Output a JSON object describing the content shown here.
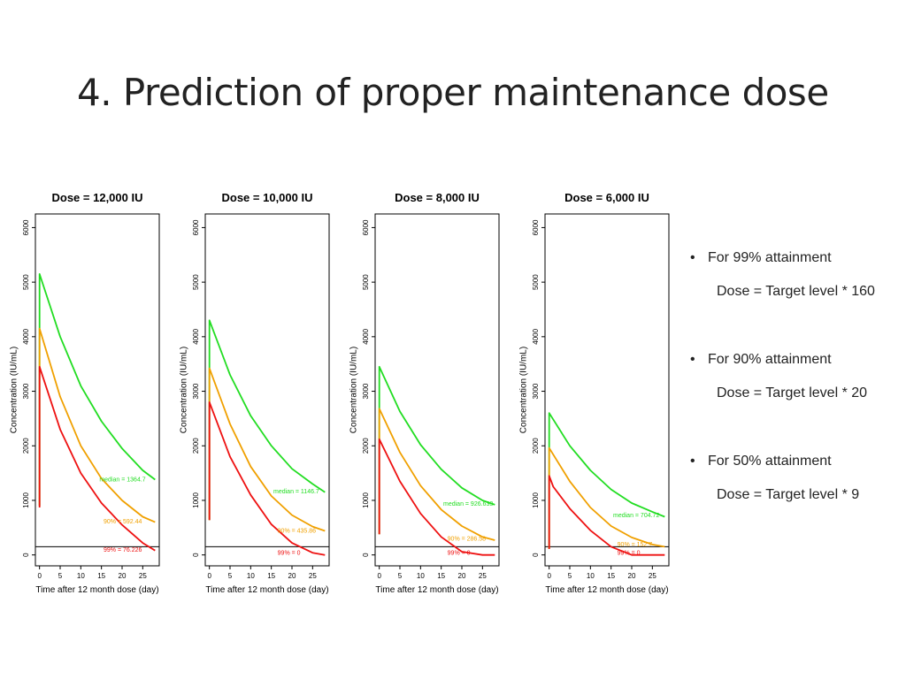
{
  "slide": {
    "title": "4. Prediction of proper maintenance dose"
  },
  "bullets": [
    {
      "marker": "•",
      "text": "For 99% attainment",
      "detail": "Dose = Target level * 160"
    },
    {
      "marker": "•",
      "text": "For 90% attainment",
      "detail": "Dose = Target level * 20"
    },
    {
      "marker": "•",
      "text": "For 50% attainment",
      "detail": "Dose = Target level * 9"
    }
  ],
  "colors": {
    "median": "#22dd22",
    "p90": "#f0a000",
    "p99": "#ee1111",
    "axis": "#000000"
  },
  "chart_data": [
    {
      "type": "line",
      "title": "Dose = 12,000 IU",
      "xlabel": "Time after 12 month dose (day)",
      "ylabel": "Concentration (IU/mL)",
      "xlim": [
        -1,
        29
      ],
      "ylim": [
        -200,
        6250
      ],
      "x_ticks": [
        0,
        5,
        10,
        15,
        20,
        25
      ],
      "y_ticks": [
        0,
        1000,
        2000,
        3000,
        4000,
        5000,
        6000
      ],
      "target_line": 150,
      "series": [
        {
          "name": "median",
          "color": "#22dd22",
          "x": [
            0,
            0,
            5,
            10,
            15,
            20,
            25,
            28
          ],
          "y": [
            900,
            5150,
            4000,
            3100,
            2450,
            1950,
            1550,
            1380
          ]
        },
        {
          "name": "90%",
          "color": "#f0a000",
          "x": [
            0,
            0,
            5,
            10,
            15,
            20,
            25,
            28
          ],
          "y": [
            900,
            4150,
            2900,
            2000,
            1400,
            1000,
            700,
            600
          ]
        },
        {
          "name": "99%",
          "color": "#ee1111",
          "x": [
            0,
            0,
            5,
            10,
            15,
            20,
            25,
            28
          ],
          "y": [
            870,
            3450,
            2300,
            1500,
            950,
            550,
            220,
            80
          ]
        }
      ],
      "annotations": [
        {
          "text": "median = 1364.7",
          "x": 14.5,
          "y": 1350,
          "color": "#22dd22"
        },
        {
          "text": "90% = 592.44",
          "x": 15.5,
          "y": 580,
          "color": "#f0a000"
        },
        {
          "text": "99% = 76.226",
          "x": 15.5,
          "y": 60,
          "color": "#ee1111"
        }
      ]
    },
    {
      "type": "line",
      "title": "Dose = 10,000 IU",
      "xlabel": "Time after 12 month dose (day)",
      "ylabel": "Concentration (IU/mL)",
      "xlim": [
        -1,
        29
      ],
      "ylim": [
        -200,
        6250
      ],
      "x_ticks": [
        0,
        5,
        10,
        15,
        20,
        25
      ],
      "y_ticks": [
        0,
        1000,
        2000,
        3000,
        4000,
        5000,
        6000
      ],
      "target_line": 150,
      "series": [
        {
          "name": "median",
          "color": "#22dd22",
          "x": [
            0,
            0,
            5,
            10,
            15,
            20,
            25,
            28
          ],
          "y": [
            640,
            4300,
            3300,
            2550,
            2000,
            1580,
            1300,
            1150
          ]
        },
        {
          "name": "90%",
          "color": "#f0a000",
          "x": [
            0,
            0,
            5,
            10,
            15,
            20,
            25,
            28
          ],
          "y": [
            640,
            3420,
            2400,
            1620,
            1080,
            730,
            520,
            440
          ]
        },
        {
          "name": "99%",
          "color": "#ee1111",
          "x": [
            0,
            0,
            5,
            10,
            15,
            20,
            25,
            28
          ],
          "y": [
            640,
            2800,
            1800,
            1100,
            560,
            220,
            40,
            0
          ]
        }
      ],
      "annotations": [
        {
          "text": "median = 1146.7",
          "x": 15.5,
          "y": 1130,
          "color": "#22dd22"
        },
        {
          "text": "90% = 435.86",
          "x": 16.5,
          "y": 410,
          "color": "#f0a000"
        },
        {
          "text": "99% = 0",
          "x": 16.5,
          "y": 0,
          "color": "#ee1111"
        }
      ]
    },
    {
      "type": "line",
      "title": "Dose = 8,000 IU",
      "xlabel": "Time after 12 month dose (day)",
      "ylabel": "Concentration (IU/mL)",
      "xlim": [
        -1,
        29
      ],
      "ylim": [
        -200,
        6250
      ],
      "x_ticks": [
        0,
        5,
        10,
        15,
        20,
        25
      ],
      "y_ticks": [
        0,
        1000,
        2000,
        3000,
        4000,
        5000,
        6000
      ],
      "target_line": 150,
      "series": [
        {
          "name": "median",
          "color": "#22dd22",
          "x": [
            0,
            0,
            5,
            10,
            15,
            20,
            25,
            28
          ],
          "y": [
            380,
            3450,
            2630,
            2020,
            1570,
            1230,
            1000,
            920
          ]
        },
        {
          "name": "90%",
          "color": "#f0a000",
          "x": [
            0,
            0,
            5,
            10,
            15,
            20,
            25,
            28
          ],
          "y": [
            380,
            2680,
            1880,
            1270,
            830,
            530,
            330,
            270
          ]
        },
        {
          "name": "99%",
          "color": "#ee1111",
          "x": [
            0,
            0,
            5,
            10,
            15,
            20,
            25,
            28
          ],
          "y": [
            380,
            2120,
            1350,
            760,
            330,
            60,
            0,
            0
          ]
        }
      ],
      "annotations": [
        {
          "text": "median = 926.633",
          "x": 15.5,
          "y": 900,
          "color": "#22dd22"
        },
        {
          "text": "90% = 286.58",
          "x": 16.5,
          "y": 260,
          "color": "#f0a000"
        },
        {
          "text": "99% = 0",
          "x": 16.5,
          "y": 0,
          "color": "#ee1111"
        }
      ]
    },
    {
      "type": "line",
      "title": "Dose = 6,000 IU",
      "xlabel": "Time after 12 month dose (day)",
      "ylabel": "Concentration (IU/mL)",
      "xlim": [
        -1,
        29
      ],
      "ylim": [
        -200,
        6250
      ],
      "x_ticks": [
        0,
        5,
        10,
        15,
        20,
        25
      ],
      "y_ticks": [
        0,
        1000,
        2000,
        3000,
        4000,
        5000,
        6000
      ],
      "target_line": 150,
      "series": [
        {
          "name": "median",
          "color": "#22dd22",
          "x": [
            0,
            0,
            5,
            10,
            15,
            20,
            25,
            28
          ],
          "y": [
            110,
            2600,
            2000,
            1550,
            1200,
            950,
            790,
            700
          ]
        },
        {
          "name": "90%",
          "color": "#f0a000",
          "x": [
            0,
            0,
            5,
            10,
            15,
            20,
            25,
            28
          ],
          "y": [
            110,
            1960,
            1350,
            870,
            530,
            320,
            190,
            150
          ]
        },
        {
          "name": "99%",
          "color": "#ee1111",
          "x": [
            0,
            0,
            1,
            5,
            10,
            15,
            20,
            25,
            28
          ],
          "y": [
            110,
            1450,
            1250,
            850,
            450,
            150,
            0,
            0,
            0
          ]
        }
      ],
      "annotations": [
        {
          "text": "median = 704.72",
          "x": 15.5,
          "y": 690,
          "color": "#22dd22"
        },
        {
          "text": "90% = 152.7",
          "x": 16.5,
          "y": 160,
          "color": "#f0a000"
        },
        {
          "text": "99% = 0",
          "x": 16.5,
          "y": 0,
          "color": "#ee1111"
        }
      ]
    }
  ]
}
